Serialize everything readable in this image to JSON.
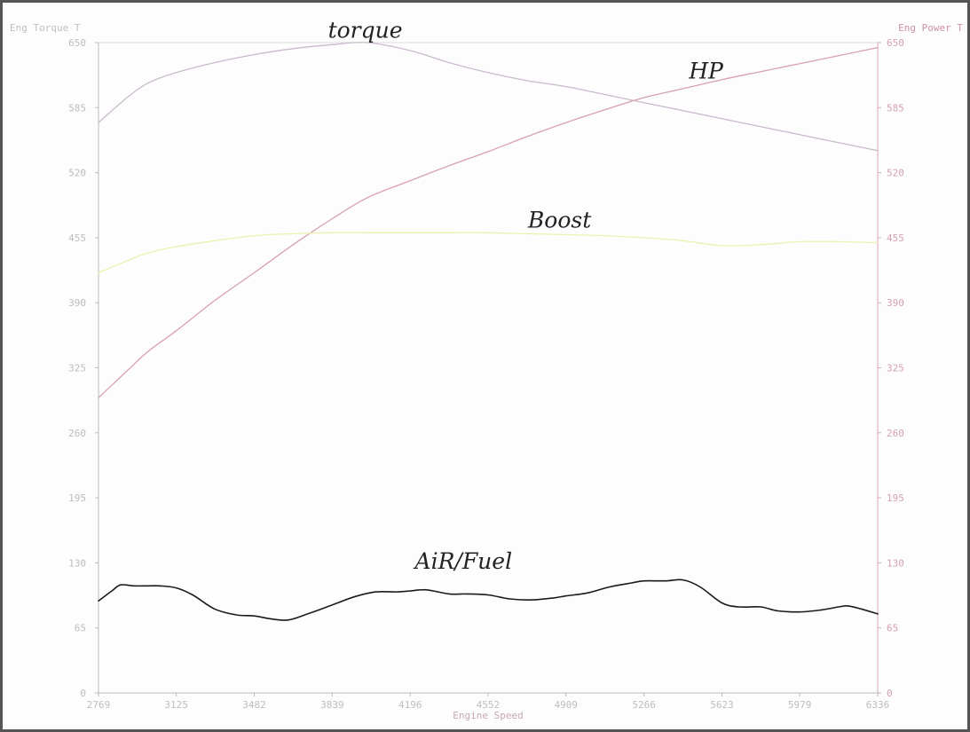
{
  "chart_data": {
    "type": "line",
    "xlabel": "Engine Speed",
    "ylabel_left": "Eng Torque T",
    "ylabel_right": "Eng Power T",
    "xlim": [
      2769,
      6336
    ],
    "ylim_left": [
      0,
      650
    ],
    "ylim_right": [
      0,
      650
    ],
    "x_ticks": [
      2769,
      3125,
      3482,
      3839,
      4196,
      4552,
      4909,
      5266,
      5623,
      5979,
      6336
    ],
    "y_ticks_left": [
      0,
      65,
      130,
      195,
      260,
      325,
      390,
      455,
      520,
      585,
      650
    ],
    "y_ticks_right": [
      0,
      65,
      130,
      195,
      260,
      325,
      390,
      455,
      520,
      585,
      650
    ],
    "grid": false,
    "annotations": [
      {
        "text": "torque",
        "x": 3990,
        "y": 655
      },
      {
        "text": "HP",
        "x": 5550,
        "y": 614
      },
      {
        "text": "Boost",
        "x": 4880,
        "y": 465
      },
      {
        "text": "AiR/Fuel",
        "x": 4440,
        "y": 124
      }
    ],
    "series": [
      {
        "key": "torque",
        "color": "#c9b9cc",
        "x": [
          2769,
          2900,
          3000,
          3125,
          3300,
          3482,
          3660,
          3839,
          4000,
          4196,
          4374,
          4552,
          4730,
          4909,
          5088,
          5266,
          5445,
          5623,
          5800,
          5979,
          6157,
          6336
        ],
        "y": [
          570,
          595,
          610,
          620,
          630,
          638,
          644,
          648,
          650,
          642,
          630,
          620,
          612,
          606,
          598,
          590,
          582,
          574,
          566,
          558,
          550,
          542
        ]
      },
      {
        "key": "power",
        "color": "#d8a0b0",
        "x": [
          2769,
          2900,
          3000,
          3125,
          3300,
          3482,
          3660,
          3839,
          4000,
          4196,
          4374,
          4552,
          4730,
          4909,
          5088,
          5266,
          5445,
          5623,
          5800,
          5979,
          6157,
          6336
        ],
        "y": [
          295,
          322,
          342,
          362,
          392,
          420,
          448,
          474,
          495,
          512,
          527,
          541,
          556,
          570,
          583,
          595,
          604,
          613,
          621,
          629,
          637,
          645
        ]
      },
      {
        "key": "boost",
        "color": "#eef0b0",
        "x": [
          2769,
          2900,
          3000,
          3125,
          3300,
          3482,
          3660,
          3839,
          4000,
          4196,
          4374,
          4552,
          4730,
          4909,
          5088,
          5266,
          5445,
          5623,
          5800,
          5979,
          6157,
          6336
        ],
        "y": [
          420,
          432,
          440,
          446,
          452,
          457,
          459,
          460,
          460,
          460,
          460,
          460,
          459,
          458,
          457,
          455,
          452,
          447,
          448,
          451,
          451,
          450
        ]
      },
      {
        "key": "air_fuel",
        "color": "#1a1a1a",
        "x": [
          2769,
          2830,
          2870,
          2930,
          3000,
          3050,
          3125,
          3200,
          3300,
          3400,
          3482,
          3560,
          3640,
          3739,
          3839,
          3939,
          4039,
          4139,
          4196,
          4270,
          4374,
          4452,
          4552,
          4652,
          4752,
          4852,
          4909,
          5009,
          5109,
          5209,
          5266,
          5366,
          5445,
          5523,
          5623,
          5700,
          5800,
          5879,
          5979,
          6079,
          6157,
          6200,
          6260,
          6336
        ],
        "y": [
          92,
          102,
          108,
          107,
          107,
          107,
          105,
          98,
          84,
          78,
          77,
          74,
          73,
          80,
          88,
          96,
          101,
          101,
          102,
          103,
          99,
          99,
          98,
          94,
          93,
          95,
          97,
          100,
          106,
          110,
          112,
          112,
          113,
          106,
          90,
          86,
          86,
          82,
          81,
          83,
          86,
          87,
          84,
          79
        ]
      }
    ]
  },
  "styles": {
    "left_axis_color": "#bcbcbc",
    "right_axis_color": "#d8a8b8",
    "left_tick_color": "#bcbcbc",
    "right_tick_color": "#d4a0b2",
    "x_tick_color": "#bdbdbd",
    "xlabel_color": "#c7a7b4",
    "ylabel_left_color": "#c0c0c0",
    "ylabel_right_color": "#d090a8"
  }
}
